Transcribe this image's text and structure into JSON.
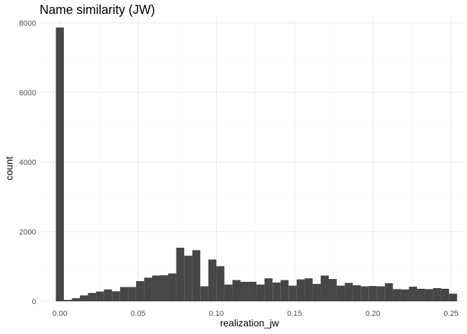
{
  "chart_data": {
    "type": "bar",
    "title": "Name similarity (JW)",
    "xlabel": "realization_jw",
    "ylabel": "count",
    "xlim": [
      -0.0125,
      0.2575
    ],
    "ylim": [
      0,
      8100
    ],
    "xticks": [
      0.0,
      0.05,
      0.1,
      0.15,
      0.2,
      0.25
    ],
    "xtick_labels": [
      "0.00",
      "0.05",
      "0.10",
      "0.15",
      "0.20",
      "0.25"
    ],
    "yticks": [
      0,
      2000,
      4000,
      6000,
      8000
    ],
    "ytick_labels": [
      "0",
      "2000",
      "4000",
      "6000",
      "8000"
    ],
    "bin_width": 0.005128,
    "bin_centers": [
      0.0,
      0.00513,
      0.01026,
      0.01538,
      0.02051,
      0.02564,
      0.03077,
      0.0359,
      0.04103,
      0.04615,
      0.05128,
      0.05641,
      0.06154,
      0.06667,
      0.07179,
      0.07692,
      0.08205,
      0.08718,
      0.09231,
      0.09744,
      0.10256,
      0.10769,
      0.11282,
      0.11795,
      0.12308,
      0.12821,
      0.13333,
      0.13846,
      0.14359,
      0.14872,
      0.15385,
      0.15897,
      0.1641,
      0.16923,
      0.17436,
      0.17949,
      0.18462,
      0.18974,
      0.19487,
      0.2,
      0.20513,
      0.21026,
      0.21538,
      0.22051,
      0.22564,
      0.23077,
      0.2359,
      0.24103,
      0.24615,
      0.25128
    ],
    "values": [
      7870,
      40,
      90,
      170,
      240,
      280,
      340,
      290,
      410,
      410,
      580,
      680,
      740,
      750,
      800,
      1540,
      1310,
      1470,
      430,
      1200,
      1010,
      480,
      610,
      560,
      560,
      480,
      660,
      540,
      610,
      450,
      630,
      660,
      500,
      740,
      640,
      450,
      530,
      460,
      430,
      440,
      430,
      520,
      350,
      340,
      420,
      360,
      350,
      380,
      360,
      220
    ],
    "fill_color": "#474747",
    "grid": true,
    "legend": "none"
  }
}
